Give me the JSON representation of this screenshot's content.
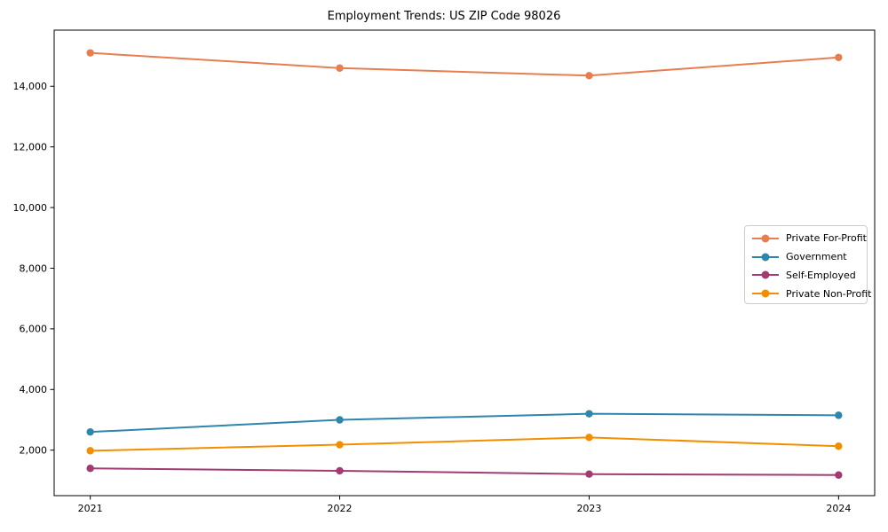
{
  "figure": {
    "background": "#ffffff",
    "axis_color": "#000000",
    "text_color": "#000000",
    "legend_border_color": "#cccccc"
  },
  "chart_data": {
    "type": "line",
    "title": "Employment Trends: US ZIP Code 98026",
    "categories": [
      "2021",
      "2022",
      "2023",
      "2024"
    ],
    "series": [
      {
        "name": "Private For-Profit",
        "color": "#e77e50",
        "values": [
          15100,
          14600,
          14350,
          14950
        ]
      },
      {
        "name": "Government",
        "color": "#2e86ab",
        "values": [
          2600,
          3000,
          3200,
          3150
        ]
      },
      {
        "name": "Self-Employed",
        "color": "#a23b72",
        "values": [
          1400,
          1320,
          1210,
          1180
        ]
      },
      {
        "name": "Private Non-Profit",
        "color": "#f18f01",
        "values": [
          1980,
          2180,
          2420,
          2130
        ]
      }
    ],
    "xlabel": "",
    "ylabel": "",
    "ylim": [
      500,
      15850
    ],
    "yticks": [
      2000,
      4000,
      6000,
      8000,
      10000,
      12000,
      14000
    ],
    "grid": false,
    "legend_position": "center-right",
    "marker": "circle",
    "line_width": 2,
    "marker_radius": 4.2
  }
}
